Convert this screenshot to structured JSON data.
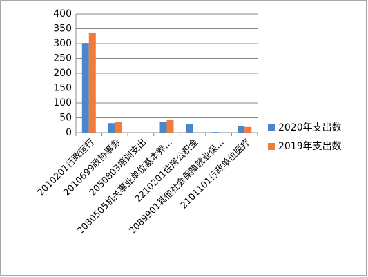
{
  "chart_data": {
    "type": "bar",
    "categories": [
      "2010201行政运行",
      "2010699政协事务",
      "2050803培训支出",
      "2080505机关事业单位基本养…",
      "2210201住房公积金",
      "2089901其他社会保障就业保…",
      "2101101行政单位医疗"
    ],
    "series": [
      {
        "name": "2020年支出数",
        "color": "#4a86c8",
        "values": [
          302,
          32,
          0,
          37,
          28,
          2,
          23
        ]
      },
      {
        "name": "2019年支出数",
        "color": "#f07b3a",
        "values": [
          335,
          35,
          0,
          42,
          0,
          0,
          19
        ]
      }
    ],
    "ylim": [
      0,
      400
    ],
    "yticks": [
      0,
      50,
      100,
      150,
      200,
      250,
      300,
      350,
      400
    ],
    "grid": true,
    "legend": "right"
  }
}
